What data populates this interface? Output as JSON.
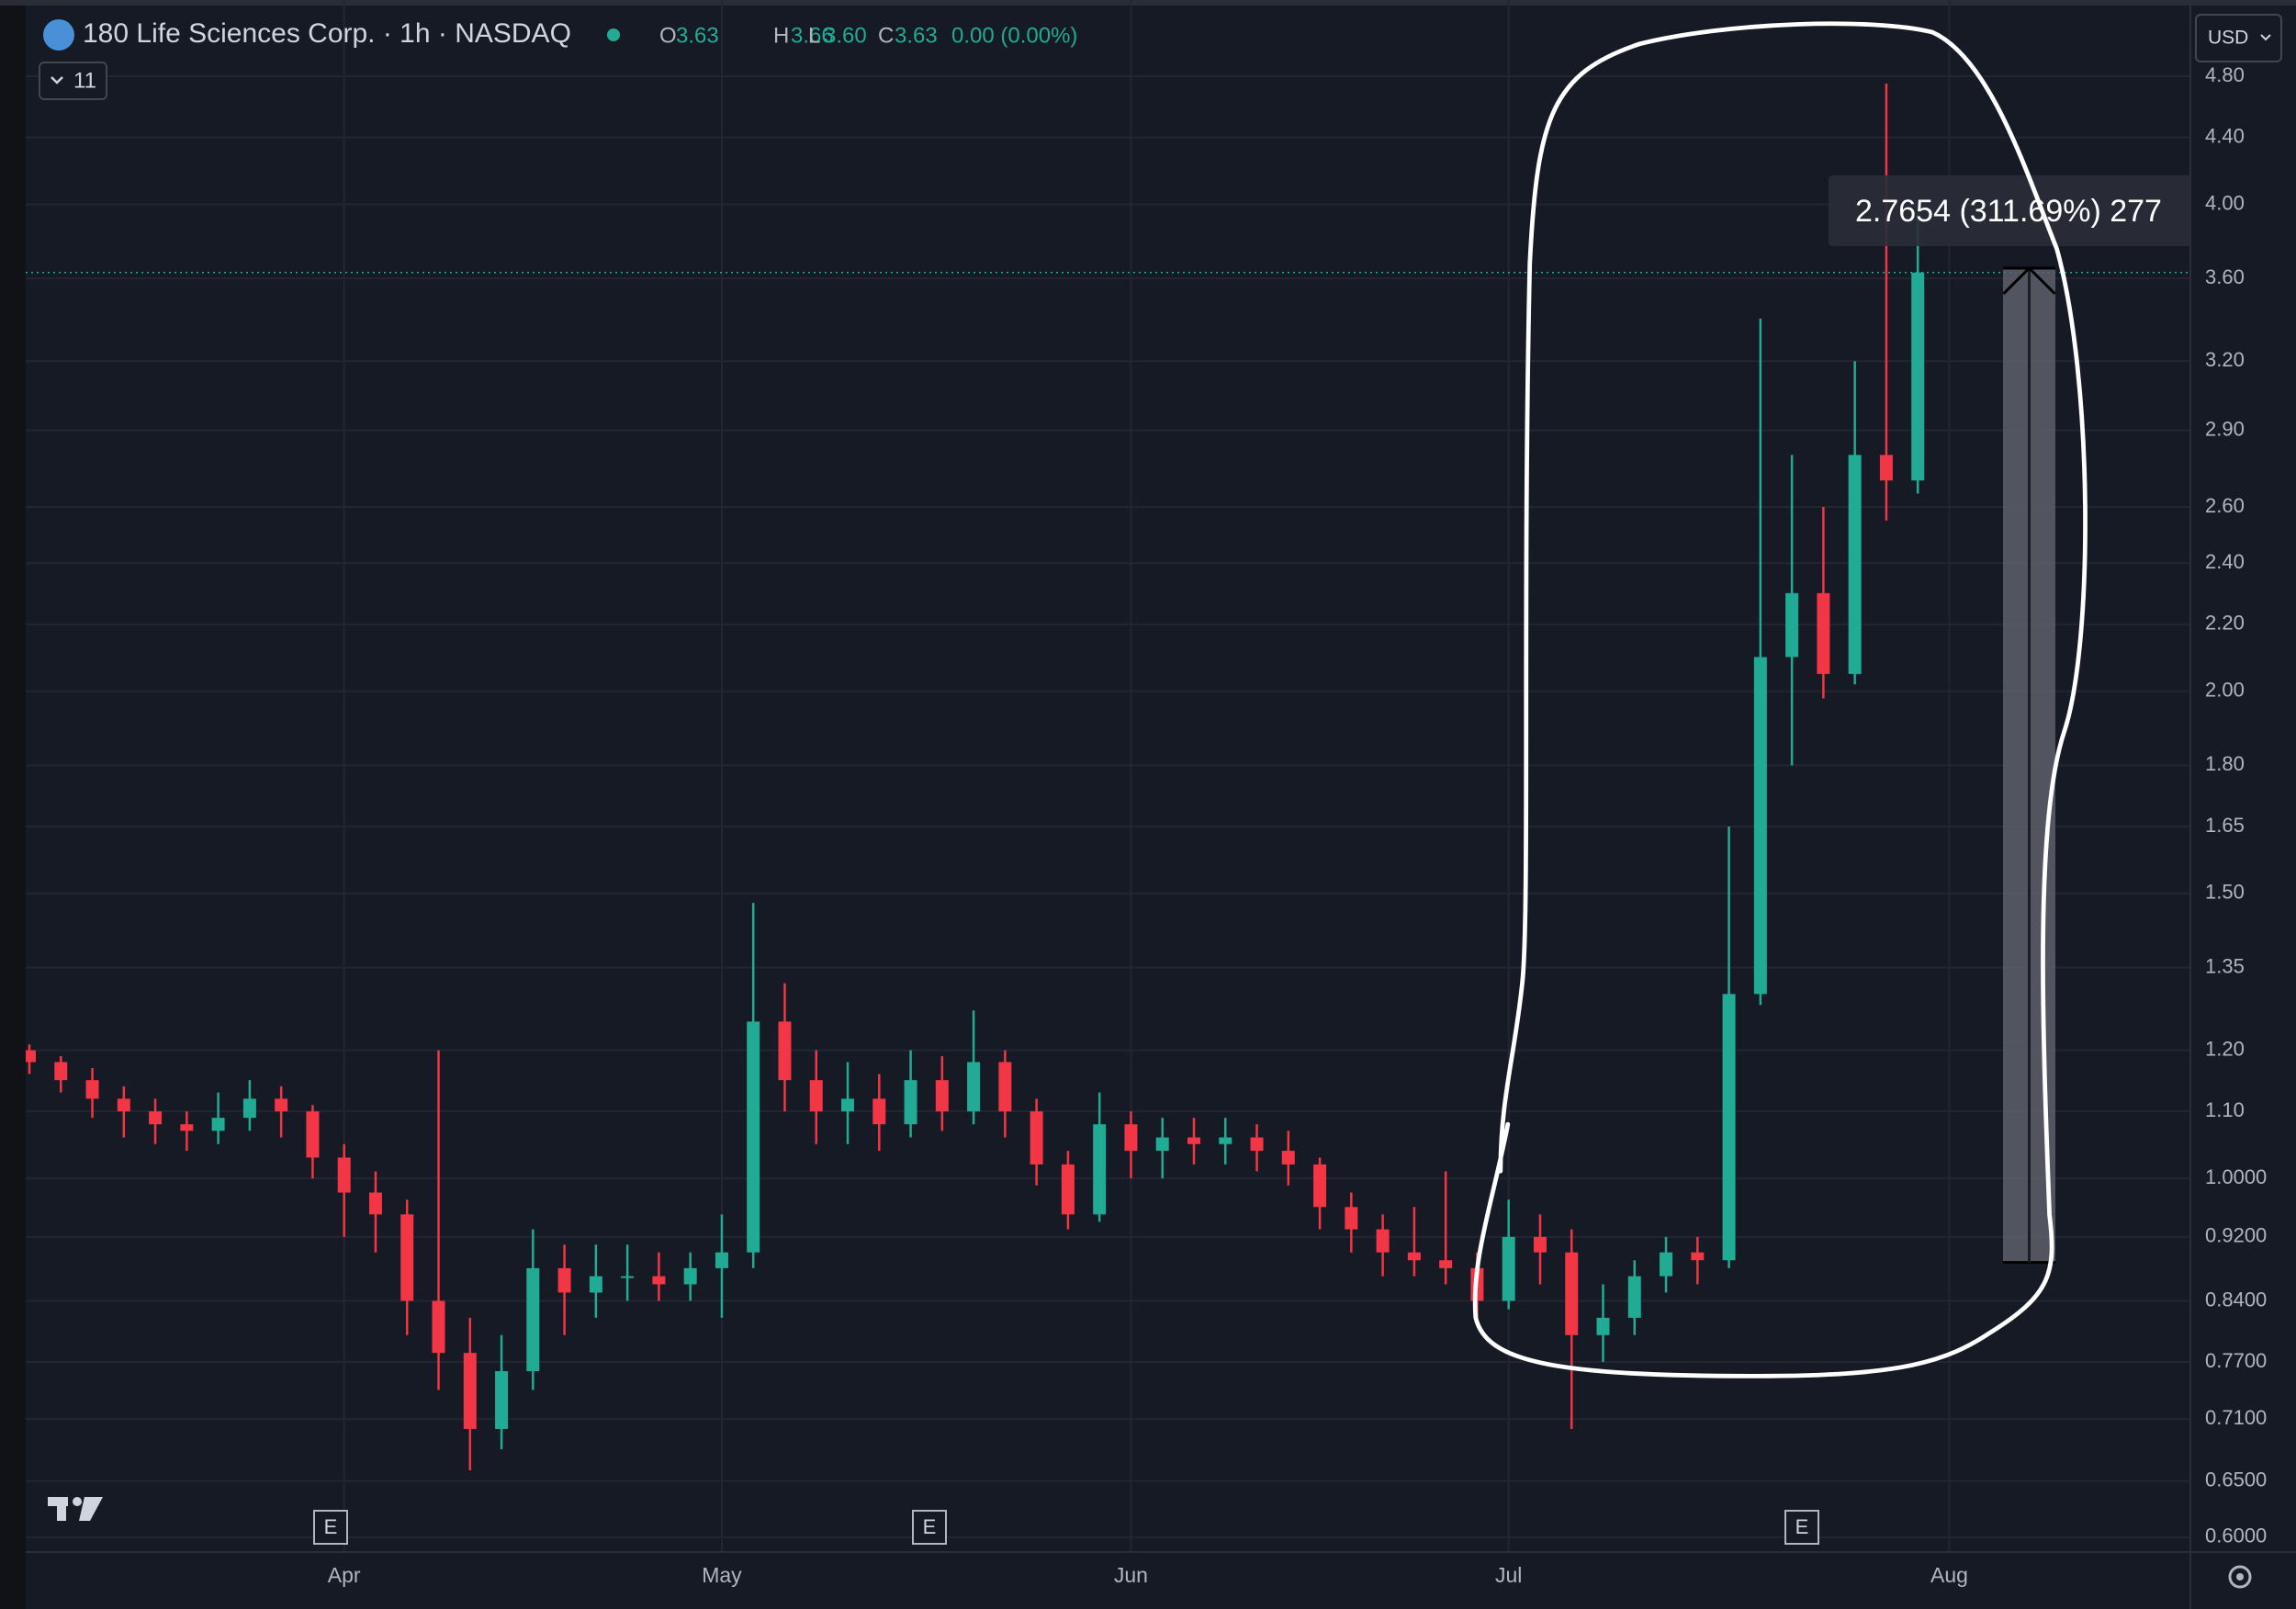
{
  "toolbar": {
    "indicators": "11",
    "currency": "USD"
  },
  "earnings": [
    "E",
    "E",
    "E"
  ],
  "chart_data": {
    "type": "candlestick",
    "title": "180 Life Sciences Corp. · 1h · NASDAQ",
    "ohlc_legend": [
      {
        "key": "O",
        "value": "3.63"
      },
      {
        "key": "H",
        "value": "3.66"
      },
      {
        "key": "L",
        "value": "3.60"
      },
      {
        "key": "C",
        "value": "3.63"
      }
    ],
    "change": "0.00 (0.00%)",
    "log_scale": true,
    "grid": true,
    "up_color": "#22ab94",
    "down_color": "#f23645",
    "categories": [
      null,
      null,
      null,
      null,
      null,
      null,
      null,
      null,
      null,
      null,
      "Apr",
      null,
      null,
      null,
      null,
      null,
      null,
      null,
      null,
      null,
      null,
      null,
      "May",
      null,
      null,
      null,
      null,
      null,
      null,
      null,
      null,
      null,
      null,
      null,
      null,
      "Jun",
      null,
      null,
      null,
      null,
      null,
      null,
      null,
      null,
      null,
      null,
      null,
      "Jul",
      null,
      null,
      null,
      null,
      null,
      null,
      null,
      null,
      null,
      null,
      null,
      null,
      null,
      "Aug",
      null,
      null,
      null,
      null,
      null,
      null,
      null
    ],
    "open": [
      1.2,
      1.18,
      1.15,
      1.12,
      1.1,
      1.08,
      1.07,
      1.09,
      1.12,
      1.1,
      1.03,
      0.98,
      0.95,
      0.84,
      0.78,
      0.7,
      0.76,
      0.88,
      0.85,
      0.87,
      0.87,
      0.86,
      0.88,
      0.9,
      1.25,
      1.15,
      1.1,
      1.12,
      1.08,
      1.15,
      1.1,
      1.18,
      1.1,
      1.02,
      0.95,
      1.08,
      1.04,
      1.06,
      1.05,
      1.06,
      1.04,
      1.02,
      0.96,
      0.93,
      0.9,
      0.89,
      0.88,
      0.84,
      0.92,
      0.9,
      0.8,
      0.82,
      0.87,
      0.9,
      0.89,
      1.3,
      2.1,
      2.3,
      2.05,
      2.8,
      2.7,
      null,
      null,
      null,
      null,
      null,
      null,
      null,
      null
    ],
    "high": [
      1.21,
      1.19,
      1.17,
      1.14,
      1.12,
      1.1,
      1.13,
      1.15,
      1.14,
      1.11,
      1.05,
      1.01,
      0.97,
      1.2,
      0.82,
      0.8,
      0.93,
      0.91,
      0.91,
      0.91,
      0.9,
      0.9,
      0.95,
      1.48,
      1.32,
      1.2,
      1.18,
      1.16,
      1.2,
      1.19,
      1.27,
      1.2,
      1.12,
      1.04,
      1.13,
      1.1,
      1.09,
      1.09,
      1.09,
      1.08,
      1.07,
      1.03,
      0.98,
      0.95,
      0.96,
      1.01,
      0.9,
      0.97,
      0.95,
      0.93,
      0.86,
      0.89,
      0.92,
      0.92,
      1.65,
      3.4,
      2.8,
      2.6,
      3.2,
      4.75,
      3.95,
      null,
      null,
      null,
      null,
      null,
      null,
      null,
      null
    ],
    "low": [
      1.16,
      1.13,
      1.09,
      1.06,
      1.05,
      1.04,
      1.05,
      1.07,
      1.06,
      1.0,
      0.92,
      0.9,
      0.8,
      0.74,
      0.66,
      0.68,
      0.74,
      0.8,
      0.82,
      0.84,
      0.84,
      0.84,
      0.82,
      0.88,
      1.1,
      1.05,
      1.05,
      1.04,
      1.06,
      1.07,
      1.08,
      1.06,
      0.99,
      0.93,
      0.94,
      1.0,
      1.0,
      1.02,
      1.02,
      1.01,
      0.99,
      0.93,
      0.9,
      0.87,
      0.87,
      0.86,
      0.82,
      0.83,
      0.86,
      0.7,
      0.77,
      0.8,
      0.85,
      0.86,
      0.88,
      1.28,
      1.8,
      1.98,
      2.02,
      2.55,
      2.65,
      null,
      null,
      null,
      null,
      null,
      null,
      null,
      null
    ],
    "close": [
      1.18,
      1.15,
      1.12,
      1.1,
      1.08,
      1.07,
      1.09,
      1.12,
      1.1,
      1.03,
      0.98,
      0.95,
      0.84,
      0.78,
      0.7,
      0.76,
      0.88,
      0.85,
      0.87,
      0.87,
      0.86,
      0.88,
      0.9,
      1.25,
      1.15,
      1.1,
      1.12,
      1.08,
      1.15,
      1.1,
      1.18,
      1.1,
      1.02,
      0.95,
      1.08,
      1.04,
      1.06,
      1.05,
      1.06,
      1.04,
      1.02,
      0.96,
      0.93,
      0.9,
      0.89,
      0.88,
      0.84,
      0.92,
      0.9,
      0.8,
      0.82,
      0.87,
      0.9,
      0.89,
      1.3,
      2.1,
      2.3,
      2.05,
      2.8,
      2.7,
      3.63,
      null,
      null,
      null,
      null,
      null,
      null,
      null,
      null
    ],
    "ylim": [
      0.5875,
      5.35
    ],
    "yticks": [
      {
        "value": 4.8,
        "label": "4.80"
      },
      {
        "value": 4.4,
        "label": "4.40"
      },
      {
        "value": 4,
        "label": "4.00"
      },
      {
        "value": 3.6,
        "label": "3.60"
      },
      {
        "value": 3.2,
        "label": "3.20"
      },
      {
        "value": 2.9,
        "label": "2.90"
      },
      {
        "value": 2.6,
        "label": "2.60"
      },
      {
        "value": 2.4,
        "label": "2.40"
      },
      {
        "value": 2.2,
        "label": "2.20"
      },
      {
        "value": 2,
        "label": "2.00"
      },
      {
        "value": 1.8,
        "label": "1.80"
      },
      1.65,
      {
        "value": 1.5,
        "label": "1.50"
      },
      1.35,
      {
        "value": 1.2,
        "label": "1.20"
      },
      {
        "value": 1.1,
        "label": "1.10"
      },
      {
        "value": 1,
        "label": "1.0000"
      },
      {
        "value": 0.92,
        "label": "0.9200"
      },
      {
        "value": 0.84,
        "label": "0.8400"
      },
      {
        "value": 0.77,
        "label": "0.7700"
      },
      {
        "value": 0.71,
        "label": "0.7100"
      },
      {
        "value": 0.65,
        "label": "0.6500"
      },
      {
        "value": 0.6,
        "label": "0.6000"
      }
    ],
    "measure": {
      "label": "2.7654 (311.69%) 277",
      "start": 0.8872,
      "end": 3.6526
    }
  }
}
